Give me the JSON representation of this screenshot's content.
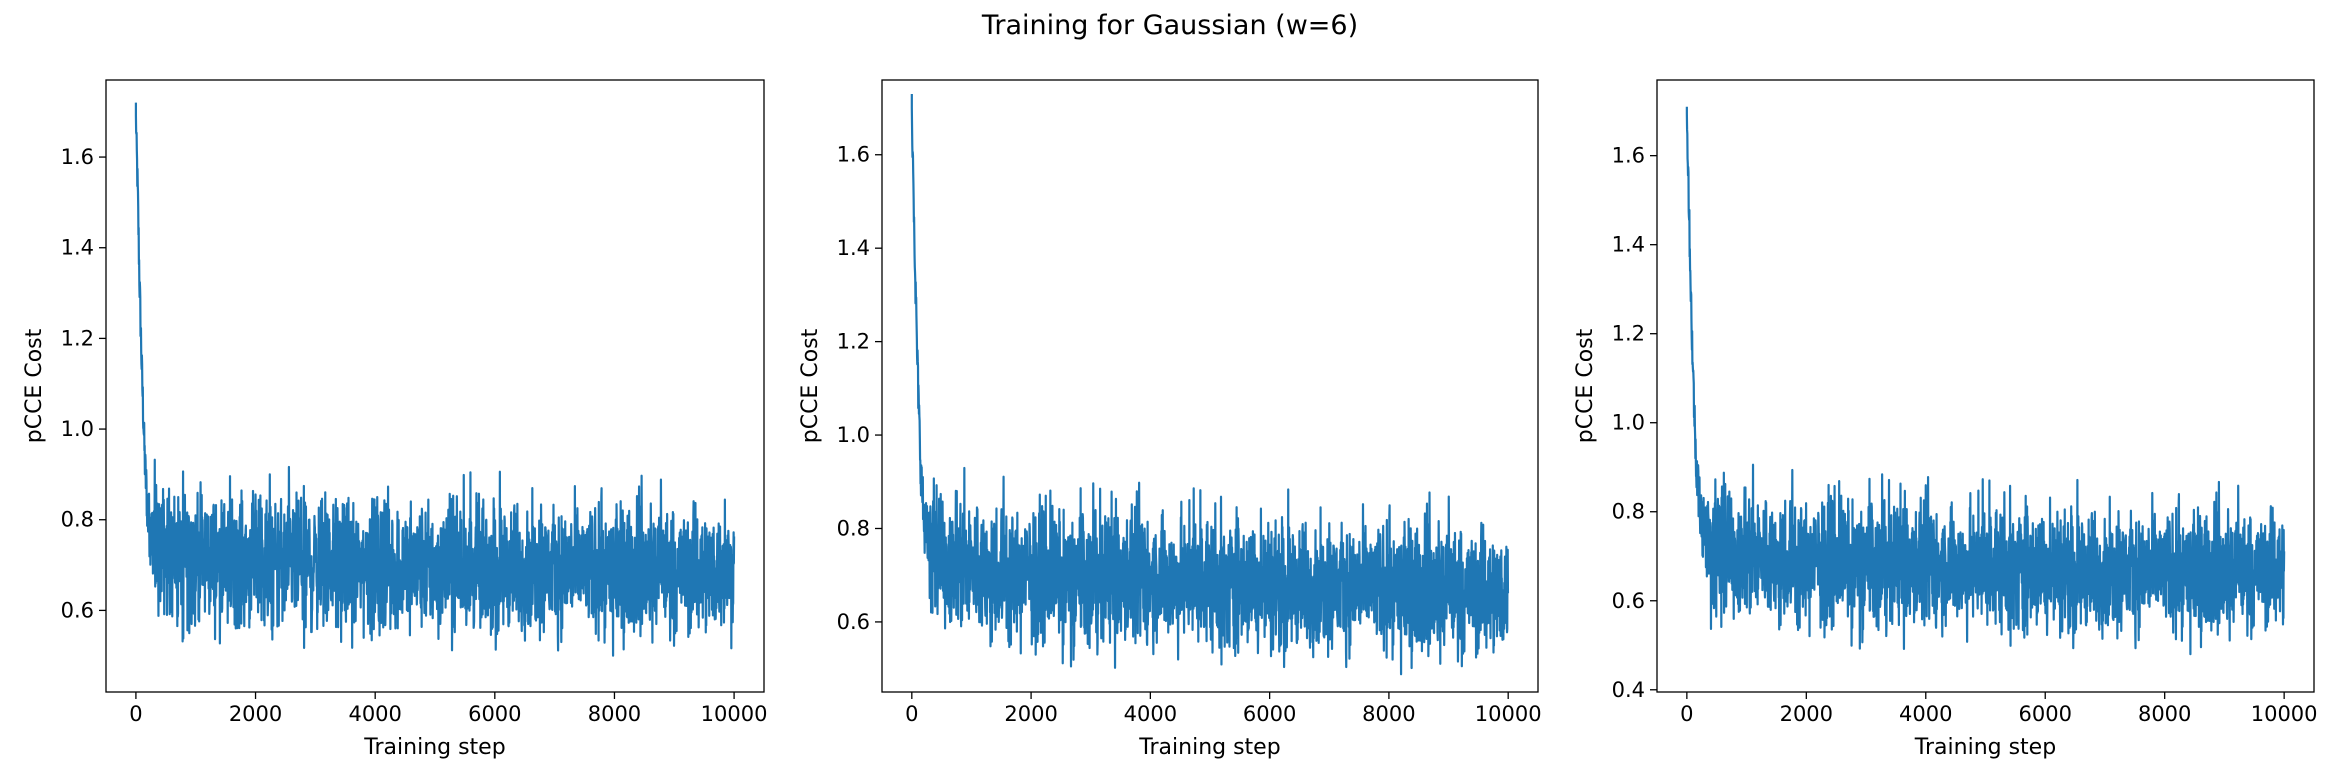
{
  "figure": {
    "title": "Training for Gaussian (w=6)"
  },
  "colors": {
    "series": "#1f77b4",
    "axes": "#000000",
    "background": "#ffffff"
  },
  "chart_data": [
    {
      "type": "line",
      "xlabel": "Training step",
      "ylabel": "pCCE Cost",
      "xlim": [
        -500,
        10500
      ],
      "ylim": [
        0.42,
        1.77
      ],
      "xticks": [
        0,
        2000,
        4000,
        6000,
        8000,
        10000
      ],
      "yticks": [
        0.6,
        0.8,
        1.0,
        1.2,
        1.4,
        1.6
      ],
      "ytick_labels": [
        "0.6",
        "0.8",
        "1.0",
        "1.2",
        "1.4",
        "1.6"
      ],
      "grid": false,
      "series": [
        {
          "x": [
            0,
            30,
            60,
            100,
            150,
            200,
            250,
            300,
            400,
            600,
            1000,
            2000,
            3000,
            4000,
            5000,
            6000,
            7000,
            8000,
            9000,
            10000
          ],
          "upper": [
            1.72,
            1.6,
            1.4,
            1.2,
            1.0,
            0.92,
            0.9,
            0.88,
            0.87,
            0.86,
            0.85,
            0.84,
            0.84,
            0.83,
            0.83,
            0.83,
            0.82,
            0.82,
            0.82,
            0.81
          ],
          "lower": [
            1.65,
            1.45,
            1.25,
            1.05,
            0.85,
            0.7,
            0.64,
            0.62,
            0.6,
            0.59,
            0.58,
            0.57,
            0.57,
            0.56,
            0.56,
            0.56,
            0.56,
            0.56,
            0.56,
            0.57
          ],
          "max": 1.72,
          "min": 0.47
        }
      ]
    },
    {
      "type": "line",
      "xlabel": "Training step",
      "ylabel": "pCCE Cost",
      "xlim": [
        -500,
        10500
      ],
      "ylim": [
        0.45,
        1.76
      ],
      "xticks": [
        0,
        2000,
        4000,
        6000,
        8000,
        10000
      ],
      "yticks": [
        0.6,
        0.8,
        1.0,
        1.2,
        1.4,
        1.6
      ],
      "ytick_labels": [
        "0.6",
        "0.8",
        "1.0",
        "1.2",
        "1.4",
        "1.6"
      ],
      "grid": false,
      "series": [
        {
          "x": [
            0,
            30,
            60,
            100,
            150,
            200,
            250,
            300,
            400,
            600,
            1000,
            2000,
            3000,
            4000,
            5000,
            6000,
            7000,
            8000,
            9000,
            10000
          ],
          "upper": [
            1.72,
            1.6,
            1.4,
            1.2,
            1.0,
            0.93,
            0.9,
            0.88,
            0.87,
            0.86,
            0.85,
            0.83,
            0.82,
            0.82,
            0.81,
            0.81,
            0.8,
            0.8,
            0.8,
            0.78
          ],
          "lower": [
            1.65,
            1.45,
            1.25,
            1.05,
            0.85,
            0.72,
            0.67,
            0.64,
            0.61,
            0.6,
            0.58,
            0.57,
            0.56,
            0.56,
            0.55,
            0.55,
            0.55,
            0.55,
            0.54,
            0.55
          ],
          "max": 1.73,
          "min": 0.48
        }
      ]
    },
    {
      "type": "line",
      "xlabel": "Training step",
      "ylabel": "pCCE Cost",
      "xlim": [
        -500,
        10500
      ],
      "ylim": [
        0.395,
        1.77
      ],
      "xticks": [
        0,
        2000,
        4000,
        6000,
        8000,
        10000
      ],
      "yticks": [
        0.4,
        0.6,
        0.8,
        1.0,
        1.2,
        1.4,
        1.6
      ],
      "ytick_labels": [
        "0.4",
        "0.6",
        "0.8",
        "1.0",
        "1.2",
        "1.4",
        "1.6"
      ],
      "grid": false,
      "series": [
        {
          "x": [
            0,
            30,
            60,
            100,
            150,
            200,
            250,
            300,
            400,
            600,
            1000,
            2000,
            3000,
            4000,
            5000,
            6000,
            7000,
            8000,
            9000,
            10000
          ],
          "upper": [
            1.71,
            1.6,
            1.4,
            1.2,
            1.0,
            0.95,
            0.9,
            0.87,
            0.85,
            0.84,
            0.83,
            0.82,
            0.81,
            0.8,
            0.8,
            0.8,
            0.79,
            0.79,
            0.79,
            0.79
          ],
          "lower": [
            1.65,
            1.45,
            1.25,
            1.05,
            0.85,
            0.72,
            0.66,
            0.62,
            0.59,
            0.58,
            0.57,
            0.56,
            0.55,
            0.55,
            0.54,
            0.54,
            0.54,
            0.54,
            0.54,
            0.56
          ],
          "max": 1.71,
          "min": 0.45
        }
      ]
    }
  ]
}
